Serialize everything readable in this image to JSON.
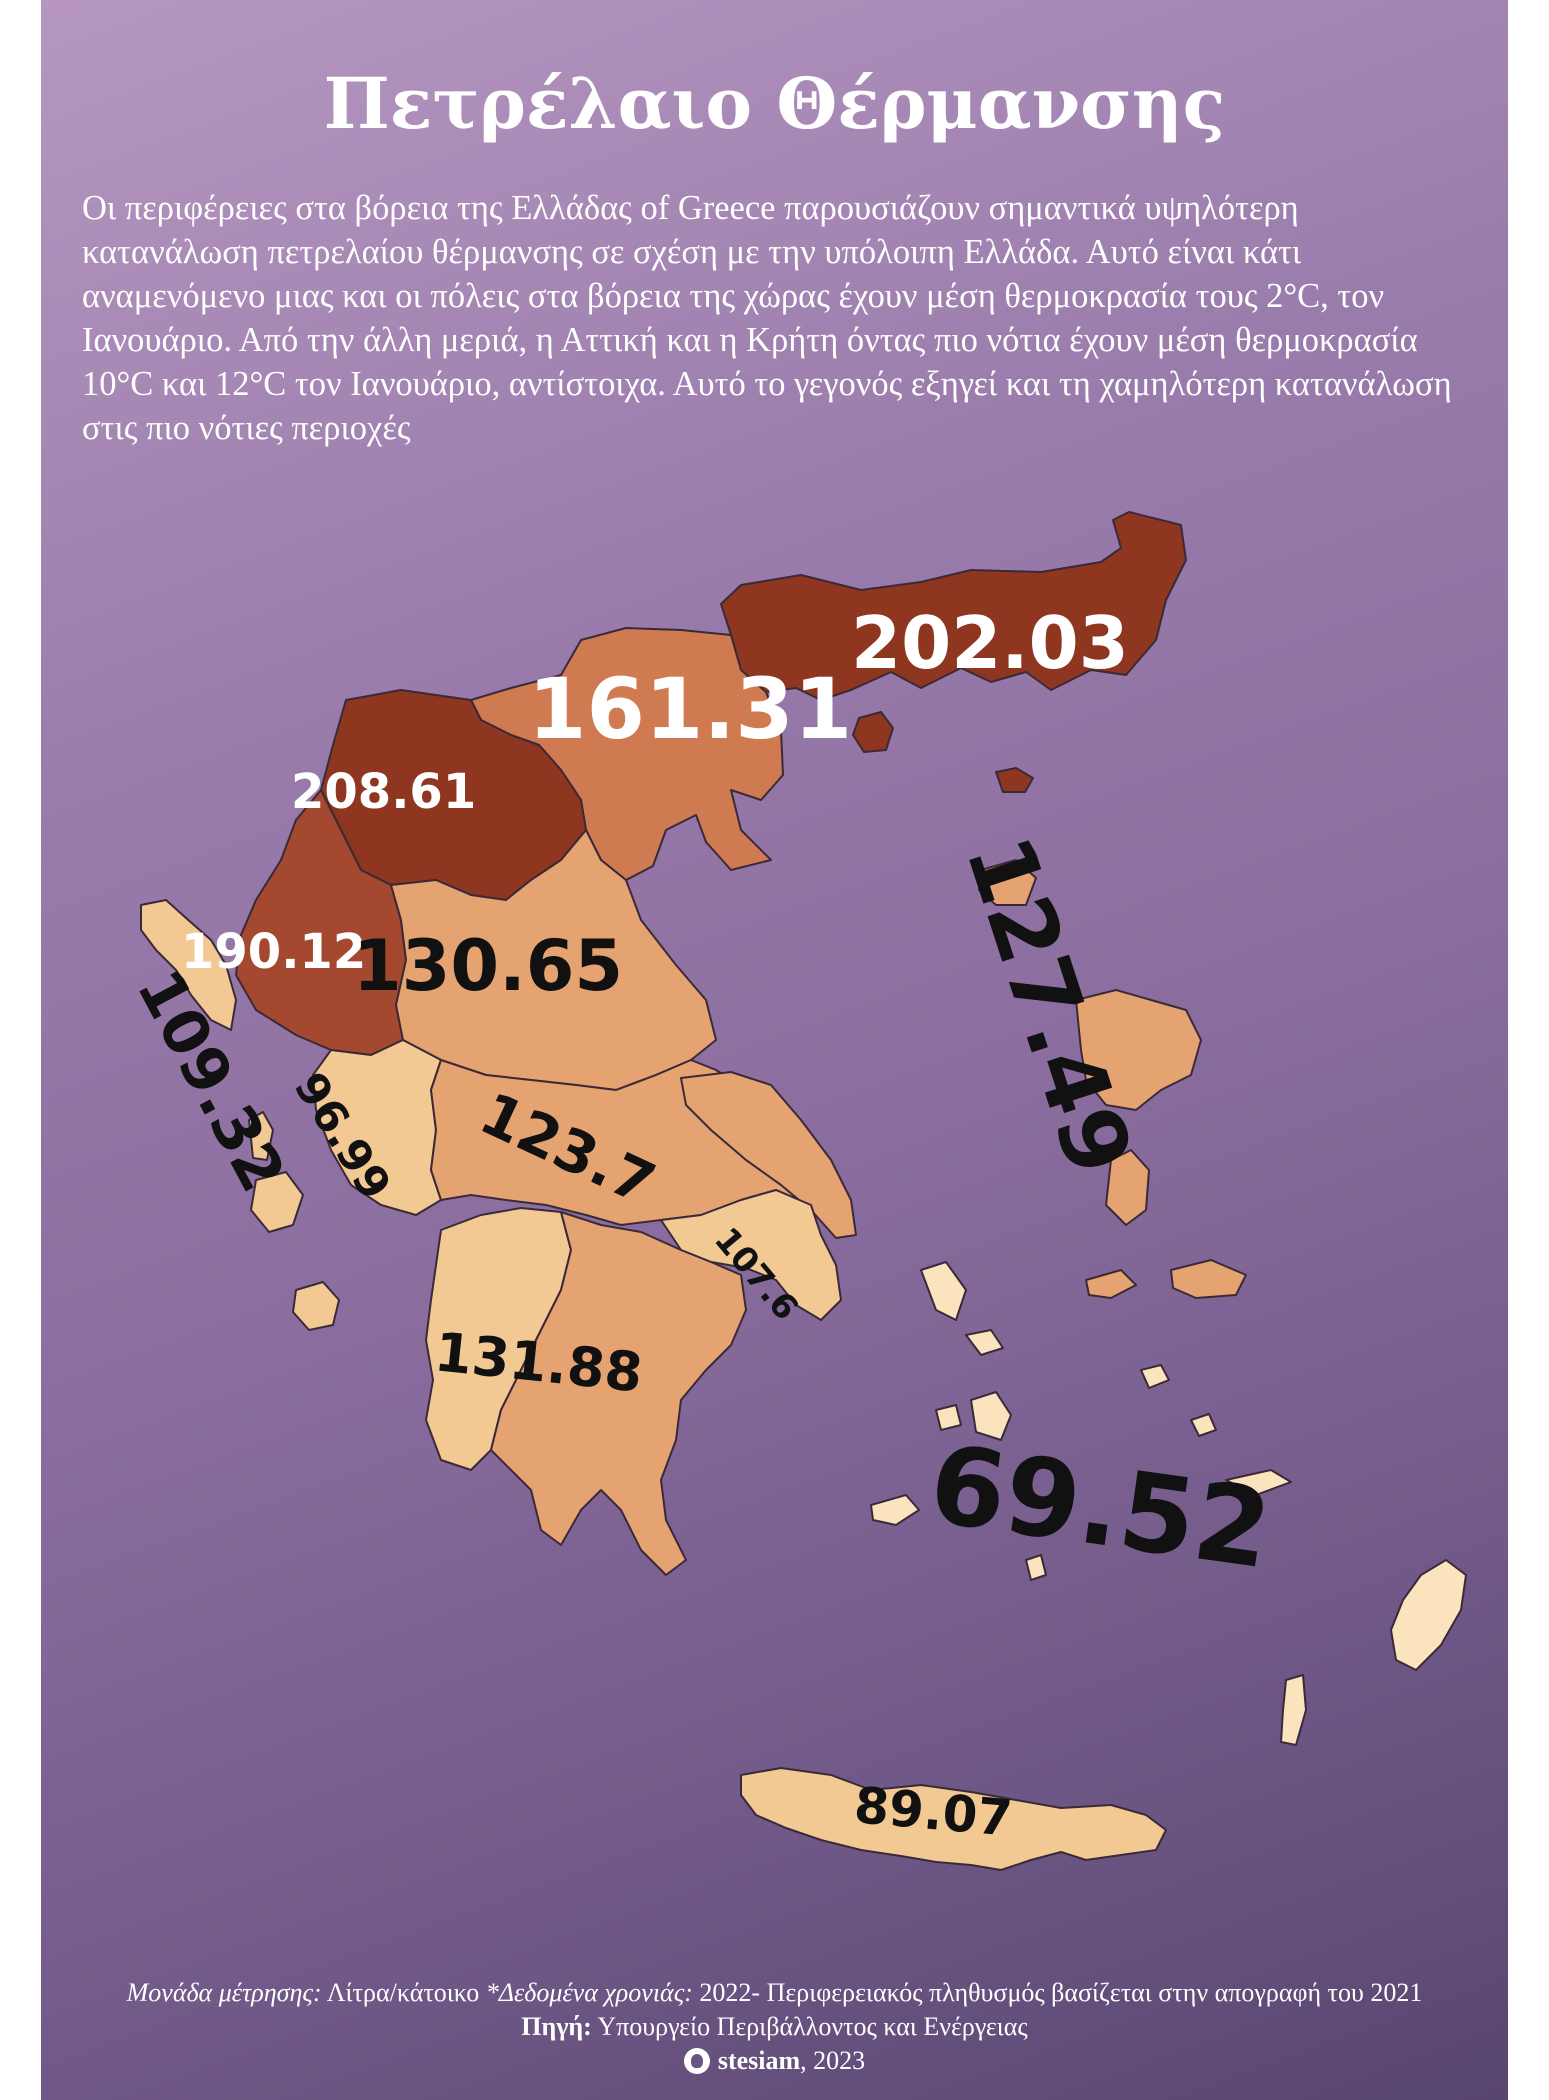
{
  "title": "Πετρέλαιο Θέρμανσης",
  "description": "Οι περιφέρειες στα βόρεια της Ελλάδας of Greece παρουσιάζουν σημαντικά υψηλότερη κατανάλωση πετρελαίου θέρμανσης σε σχέση με την υπόλοιπη Ελλάδα. Αυτό είναι κάτι αναμενόμενο μιας και οι πόλεις στα βόρεια της χώρας έχουν μέση θερμοκρασία τους 2°C, τον Ιανουάριο. Από την άλλη μεριά, η Αττική και η Κρήτη όντας πιο νότια έχουν μέση θερμοκρασία 10°C και 12°C τον Ιανουάριο, αντίστοιχα. Αυτό το γεγονός εξηγεί και τη χαμηλότερη κατανάλωση στις πιο νότιες περιοχές",
  "colors": {
    "background_top": "#b697c0",
    "background_bottom": "#574670",
    "very_high": "#8f3620",
    "high": "#a4482f",
    "mid_high": "#d07a52",
    "mid": "#e6a372",
    "low": "#f2c893",
    "lowest": "#fbe3be",
    "label_light": "#ffffff",
    "label_dark": "#111111"
  },
  "map_labels": [
    {
      "value": "202.03",
      "color": "label_light"
    },
    {
      "value": "161.31",
      "color": "label_light"
    },
    {
      "value": "208.61",
      "color": "label_light"
    },
    {
      "value": "190.12",
      "color": "label_light"
    },
    {
      "value": "130.65",
      "color": "label_dark"
    },
    {
      "value": "127.49",
      "color": "label_dark"
    },
    {
      "value": "109.32",
      "color": "label_dark"
    },
    {
      "value": "96.99",
      "color": "label_dark"
    },
    {
      "value": "123.7",
      "color": "label_dark"
    },
    {
      "value": "107.6",
      "color": "label_dark"
    },
    {
      "value": "131.88",
      "color": "label_dark"
    },
    {
      "value": "69.52",
      "color": "label_dark"
    },
    {
      "value": "89.07",
      "color": "label_dark"
    }
  ],
  "footer": {
    "unit_label": "Μονάδα μέτρησης:",
    "unit_value": "Λίτρα/κάτοικο",
    "year_label": "*Δεδομένα χρονιάς:",
    "year_value": "2022- Περιφερειακός πληθυσμός βασίζεται στην απογραφή του 2021",
    "source_label": "Πηγή:",
    "source_value": "Υπουργείο Περιβάλλοντος και Ενέργειας",
    "author": "stesiam",
    "author_year": ", 2023",
    "author_icon": "github-icon"
  }
}
